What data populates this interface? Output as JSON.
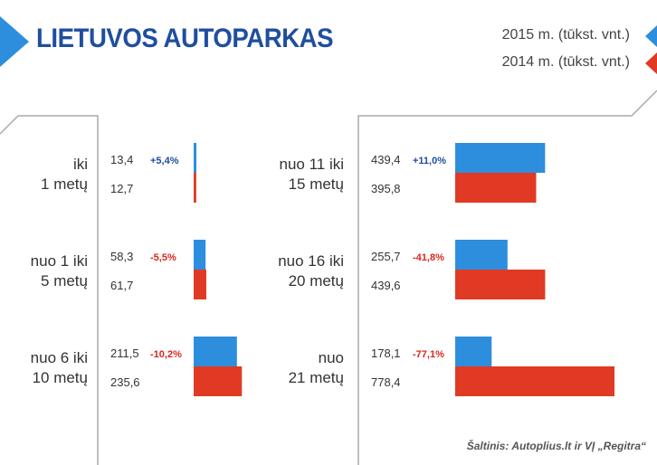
{
  "title": "LIETUVOS AUTOPARKAS",
  "legend": [
    {
      "label": "2015 m. (tūkst. vnt.)",
      "color": "#2e8ede"
    },
    {
      "label": "2014 m. (tūkst. vnt.)",
      "color": "#e03a24"
    }
  ],
  "source": "Šaltinis: Autoplius.lt ir VĮ „Regitra“",
  "colors": {
    "blue": "#2e8ede",
    "red": "#e03a24",
    "title": "#1f4ea0",
    "pos": "#1f4ea0",
    "neg": "#d9281e"
  },
  "chart_data": {
    "type": "bar",
    "title": "LIETUVOS AUTOPARKAS",
    "series_names": [
      "2015 m. (tūkst. vnt.)",
      "2014 m. (tūkst. vnt.)"
    ],
    "groups": [
      {
        "label": [
          "iki",
          "1 metų"
        ],
        "v2015": 13.4,
        "t2015": "13,4",
        "v2014": 12.7,
        "t2014": "12,7",
        "change": "+5,4%"
      },
      {
        "label": [
          "nuo 1 iki",
          "5 metų"
        ],
        "v2015": 58.3,
        "t2015": "58,3",
        "v2014": 61.7,
        "t2014": "61,7",
        "change": "-5,5%"
      },
      {
        "label": [
          "nuo 6 iki",
          "10 metų"
        ],
        "v2015": 211.5,
        "t2015": "211,5",
        "v2014": 235.6,
        "t2014": "235,6",
        "change": "-10,2%"
      },
      {
        "label": [
          "nuo 11 iki",
          "15 metų"
        ],
        "v2015": 439.4,
        "t2015": "439,4",
        "v2014": 395.8,
        "t2014": "395,8",
        "change": "+11,0%"
      },
      {
        "label": [
          "nuo 16 iki",
          "20 metų"
        ],
        "v2015": 255.7,
        "t2015": "255,7",
        "v2014": 439.6,
        "t2014": "439,6",
        "change": "-41,8%"
      },
      {
        "label": [
          "nuo",
          "21 metų"
        ],
        "v2015": 178.1,
        "t2015": "178,1",
        "v2014": 778.4,
        "t2014": "778,4",
        "change": "-77,1%"
      }
    ]
  }
}
